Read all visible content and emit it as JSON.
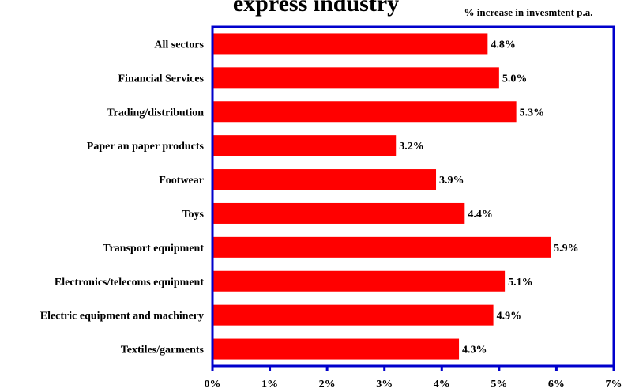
{
  "chart_data": {
    "type": "bar",
    "orientation": "horizontal",
    "title": "express industry",
    "subtitle": "% increase in invesmtent p.a.",
    "categories": [
      "All sectors",
      "Financial Services",
      "Trading/distribution",
      "Paper an paper products",
      "Footwear",
      "Toys",
      "Transport equipment",
      "Electronics/telecoms equipment",
      "Electric equipment and machinery",
      "Textiles/garments"
    ],
    "values": [
      4.8,
      5.0,
      5.3,
      3.2,
      3.9,
      4.4,
      5.9,
      5.1,
      4.9,
      4.3
    ],
    "value_labels": [
      "4.8%",
      "5.0%",
      "5.3%",
      "3.2%",
      "3.9%",
      "4.4%",
      "5.9%",
      "5.1%",
      "4.9%",
      "4.3%"
    ],
    "x_ticks": [
      0,
      1,
      2,
      3,
      4,
      5,
      6,
      7
    ],
    "x_tick_labels": [
      "0%",
      "1%",
      "2%",
      "3%",
      "4%",
      "5%",
      "6%",
      "7%"
    ],
    "xlim": [
      0,
      7
    ],
    "grid": false,
    "bar_color": "#ff0000",
    "axis_color": "#0000cc"
  }
}
